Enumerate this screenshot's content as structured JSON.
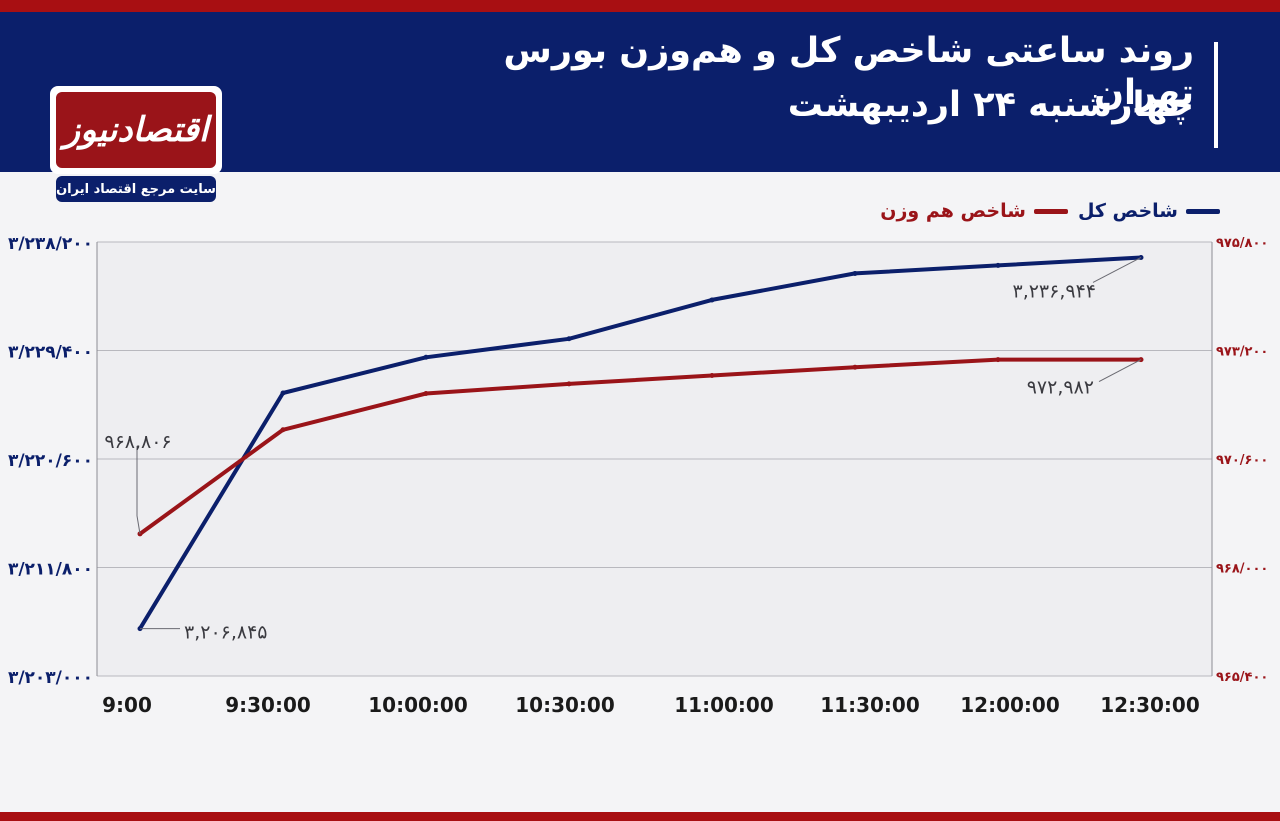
{
  "header": {
    "title": "روند ساعتی شاخص کل و هم‌وزن بورس تهران",
    "subtitle": "چهارشنبه ۲۴ اردیبهشت"
  },
  "logo": {
    "name": "اقتصادنیوز",
    "tagline": "سایت مرجع اقتصاد ایران"
  },
  "colors": {
    "header_bg": "#0b1f6b",
    "accent_red": "#a80f12",
    "series_total": "#0b1f6b",
    "series_equal": "#9a1419"
  },
  "chart_data": {
    "type": "line",
    "title": "",
    "x": [
      "9:00",
      "9:30:00",
      "10:00:00",
      "10:30:00",
      "11:00:00",
      "11:30:00",
      "12:00:00",
      "12:30:00"
    ],
    "left_axis": {
      "ylim": [
        3203000,
        3238200
      ],
      "ticks": [
        3203000,
        3211800,
        3220600,
        3229400,
        3238200
      ],
      "tick_labels": [
        "۳/۲۰۳/۰۰۰",
        "۳/۲۱۱/۸۰۰",
        "۳/۲۲۰/۶۰۰",
        "۳/۲۲۹/۴۰۰",
        "۳/۲۳۸/۲۰۰"
      ]
    },
    "right_axis": {
      "ylim": [
        965400,
        975800
      ],
      "ticks": [
        965400,
        968000,
        970600,
        973200,
        975800
      ],
      "tick_labels": [
        "۹۶۵/۴۰۰",
        "۹۶۸/۰۰۰",
        "۹۷۰/۶۰۰",
        "۹۷۳/۲۰۰",
        "۹۷۵/۸۰۰"
      ]
    },
    "grid": true,
    "legend_position": "top-right",
    "series": [
      {
        "name": "شاخص کل",
        "axis": "left",
        "color": "#0b1f6b",
        "values": [
          3206845,
          3225950,
          3228850,
          3230350,
          3233500,
          3235650,
          3236300,
          3236944
        ]
      },
      {
        "name": "شاخص هم وزن",
        "axis": "right",
        "color": "#9a1419",
        "values": [
          968806,
          971300,
          972170,
          972400,
          972600,
          972800,
          972982,
          972982
        ]
      }
    ],
    "annotations": [
      {
        "series": 0,
        "index": 0,
        "text": "۳,۲۰۶,۸۴۵"
      },
      {
        "series": 0,
        "index": 7,
        "text": "۳,۲۳۶,۹۴۴"
      },
      {
        "series": 1,
        "index": 0,
        "text": "۹۶۸,۸۰۶"
      },
      {
        "series": 1,
        "index": 7,
        "text": "۹۷۲,۹۸۲"
      }
    ]
  }
}
